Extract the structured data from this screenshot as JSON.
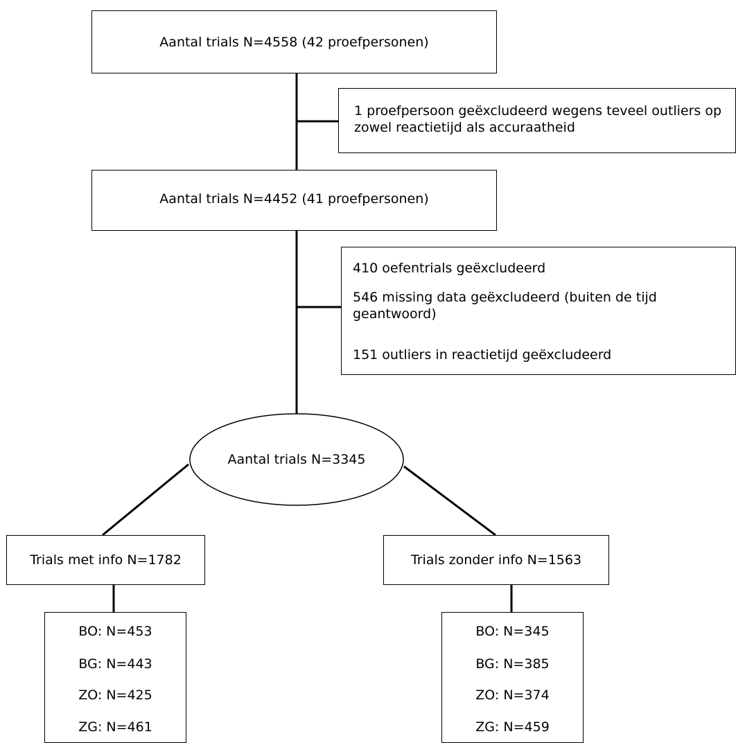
{
  "flowchart": {
    "start_box": "Aantal trials N=4558 (42 proefpersonen)",
    "exclusion_1": "1 proefpersoon geëxcludeerd wegens teveel outliers op zowel reactietijd als accuraatheid",
    "second_box": "Aantal trials N=4452 (41 proefpersonen)",
    "exclusion_2": {
      "line_1": "410 oefentrials geëxcludeerd",
      "line_2": "546 missing data geëxcludeerd (buiten de tijd geantwoord)",
      "line_3": "151 outliers in reactietijd geëxcludeerd"
    },
    "total_ellipse": "Aantal trials N=3345",
    "left_branch": {
      "title": "Trials met info N=1782",
      "items": [
        "BO: N=453",
        "BG: N=443",
        "ZO: N=425",
        "ZG: N=461"
      ]
    },
    "right_branch": {
      "title": "Trials zonder info N=1563",
      "items": [
        "BO: N=345",
        "BG: N=385",
        "ZO: N=374",
        "ZG: N=459"
      ]
    }
  }
}
